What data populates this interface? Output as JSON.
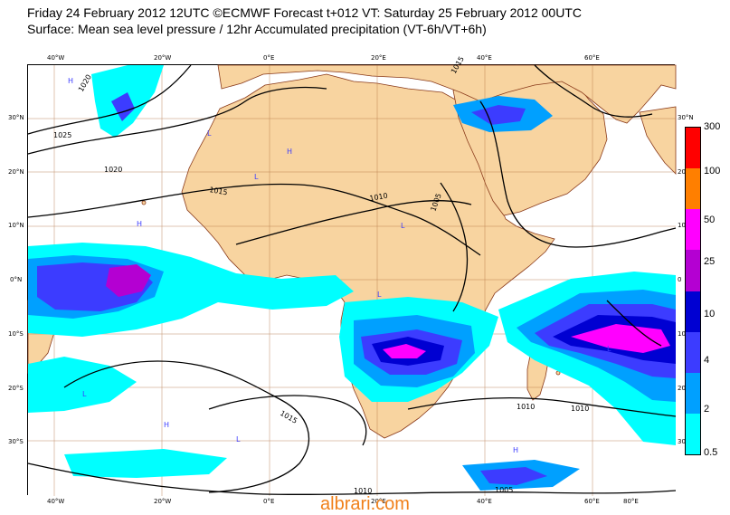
{
  "header": {
    "line1": "Friday 24 February 2012 12UTC ©ECMWF Forecast t+012 VT: Saturday 25 February 2012 00UTC",
    "line2": "Surface: Mean sea level pressure / 12hr Accumulated precipitation (VT-6h/VT+6h)"
  },
  "axes": {
    "lon_top": [
      "40°W",
      "20°W",
      "0°E",
      "20°E",
      "40°E",
      "60°E"
    ],
    "lon_bottom": [
      "40°W",
      "20°W",
      "0°E",
      "20°E",
      "40°E",
      "60°E",
      "80°E"
    ],
    "lat_left": [
      "30°N",
      "20°N",
      "10°N",
      "0°N",
      "10°S",
      "20°S",
      "30°S"
    ],
    "lat_right": [
      "30°N",
      "20",
      "10",
      "0",
      "10",
      "20",
      "30"
    ]
  },
  "legend": {
    "labels": [
      "300",
      "100",
      "50",
      "25",
      "10",
      "4",
      "2",
      "0.5"
    ],
    "colors": [
      "#ff0000",
      "#ff7f00",
      "#ff00ff",
      "#b400d2",
      "#0000d2",
      "#3c3cff",
      "#00a0ff",
      "#00ffff"
    ]
  },
  "isobars": [
    "1020",
    "1025",
    "1015",
    "1010",
    "1005",
    "1015",
    "1020",
    "1015",
    "1010",
    "1005",
    "1010",
    "1010"
  ],
  "colors": {
    "land": "#f8d4a0",
    "ocean": "#ffffff",
    "coast": "#8a3a1a",
    "isobar": "#000000",
    "grid": "#b07040"
  },
  "watermark": "albrari.com"
}
